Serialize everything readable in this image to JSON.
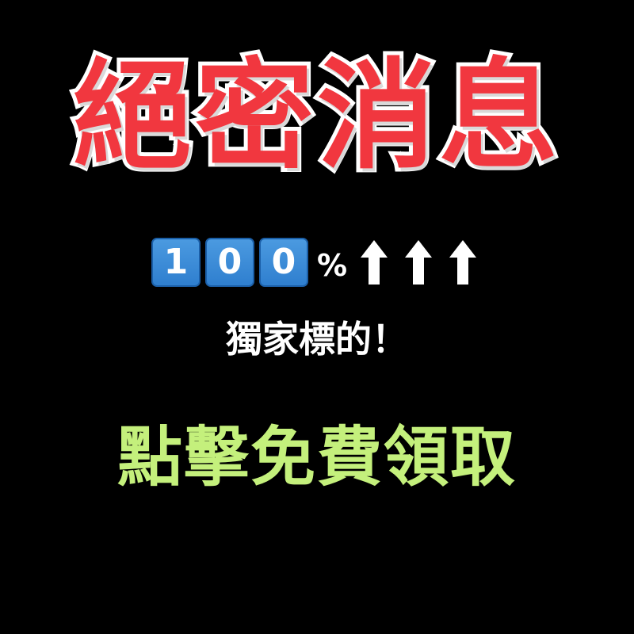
{
  "headline": "絕密消息",
  "percentage": {
    "digits": [
      "1",
      "0",
      "0"
    ],
    "sign": "%"
  },
  "arrows": [
    "arrow-up-icon",
    "arrow-up-icon",
    "arrow-up-icon"
  ],
  "subtitle": "獨家標的！",
  "cta": "點擊免費領取",
  "colors": {
    "background": "#000000",
    "headline_fill": "#f1373f",
    "headline_outline": "#ffffff",
    "digit_box": "#3a8ad8",
    "cta_text": "#c4f07c",
    "text_white": "#ffffff"
  }
}
